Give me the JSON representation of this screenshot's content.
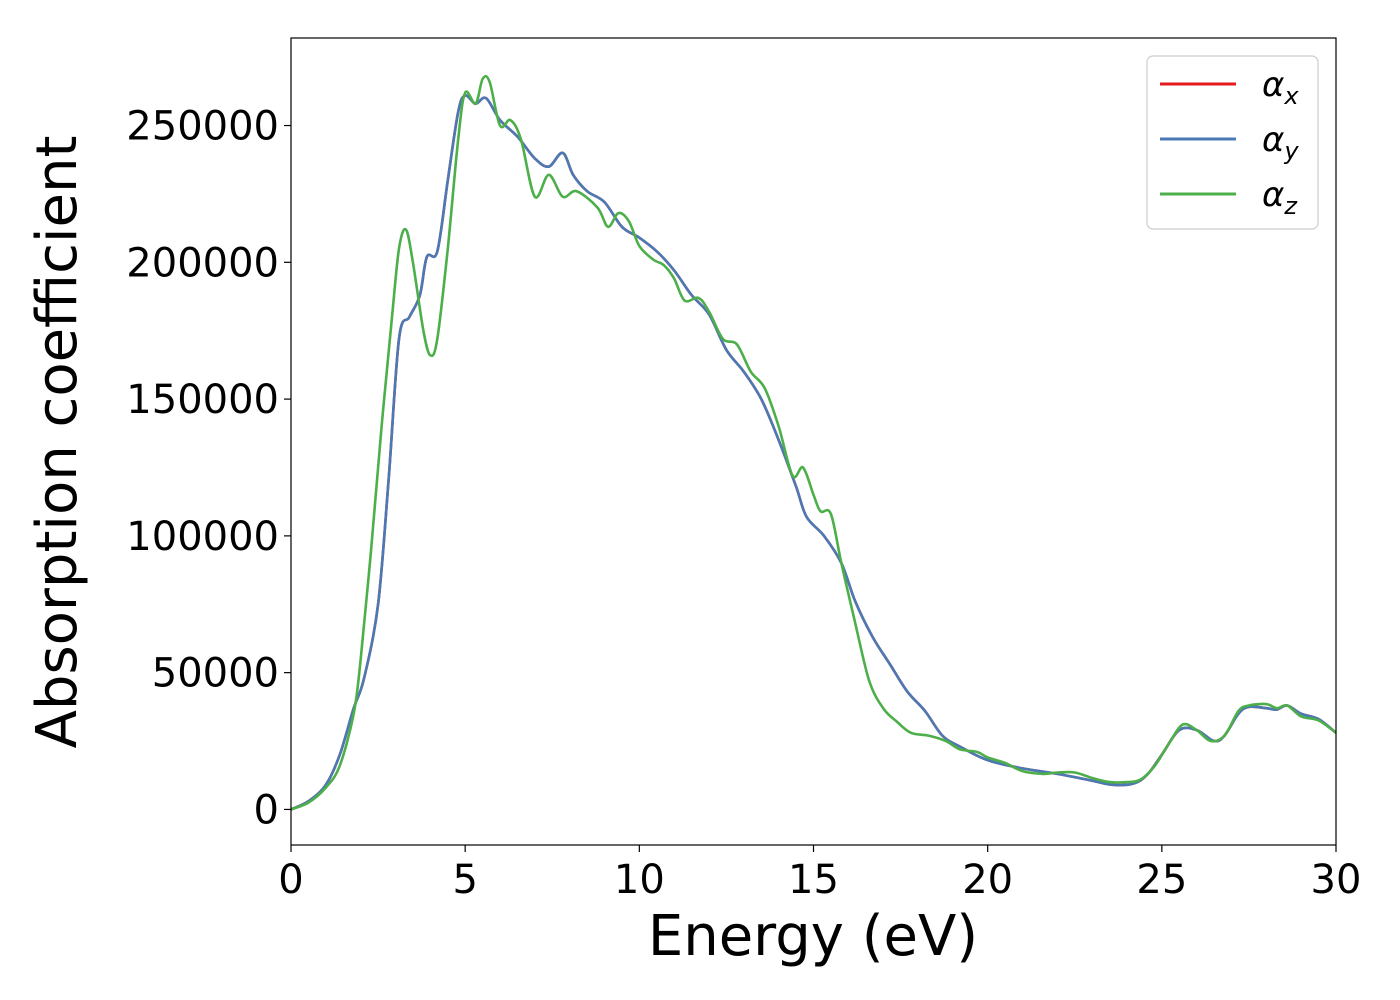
{
  "chart_data": {
    "type": "line",
    "title": "",
    "xlabel": "Energy (eV)",
    "ylabel": "Absorption coefficient",
    "xlim": [
      0,
      30
    ],
    "ylim": [
      -13000,
      282000
    ],
    "xticks": [
      0,
      5,
      10,
      15,
      20,
      25,
      30
    ],
    "xtick_labels": [
      "0",
      "5",
      "10",
      "15",
      "20",
      "25",
      "30"
    ],
    "yticks": [
      0,
      50000,
      100000,
      150000,
      200000,
      250000
    ],
    "ytick_labels": [
      "0",
      "50000",
      "100000",
      "150000",
      "200000",
      "250000"
    ],
    "grid": false,
    "legend_position": "top-right",
    "series": [
      {
        "name": "α",
        "subscript": "x",
        "color": "#e41a1c",
        "points": [
          [
            0,
            0
          ],
          [
            0.5,
            3000
          ],
          [
            1.0,
            9000
          ],
          [
            1.4,
            20000
          ],
          [
            1.8,
            37000
          ],
          [
            2.1,
            48000
          ],
          [
            2.5,
            75000
          ],
          [
            2.8,
            120000
          ],
          [
            3.1,
            172000
          ],
          [
            3.4,
            180000
          ],
          [
            3.7,
            188000
          ],
          [
            3.9,
            202000
          ],
          [
            4.2,
            204000
          ],
          [
            4.5,
            230000
          ],
          [
            4.8,
            255000
          ],
          [
            5.0,
            261000
          ],
          [
            5.3,
            258000
          ],
          [
            5.6,
            260000
          ],
          [
            6.0,
            252000
          ],
          [
            6.5,
            246000
          ],
          [
            7.0,
            238000
          ],
          [
            7.4,
            235000
          ],
          [
            7.8,
            240000
          ],
          [
            8.1,
            232000
          ],
          [
            8.5,
            226000
          ],
          [
            9.0,
            222000
          ],
          [
            9.5,
            213000
          ],
          [
            10.0,
            209000
          ],
          [
            10.5,
            204000
          ],
          [
            11.0,
            197000
          ],
          [
            11.5,
            188000
          ],
          [
            12.0,
            181000
          ],
          [
            12.5,
            168000
          ],
          [
            13.0,
            160000
          ],
          [
            13.5,
            150000
          ],
          [
            14.0,
            135000
          ],
          [
            14.5,
            118000
          ],
          [
            14.8,
            107000
          ],
          [
            15.3,
            100000
          ],
          [
            15.8,
            90000
          ],
          [
            16.2,
            76000
          ],
          [
            16.7,
            63000
          ],
          [
            17.2,
            53000
          ],
          [
            17.7,
            43000
          ],
          [
            18.2,
            36000
          ],
          [
            18.7,
            27000
          ],
          [
            19.2,
            23000
          ],
          [
            20.0,
            18000
          ],
          [
            21.0,
            15000
          ],
          [
            22.0,
            13000
          ],
          [
            23.0,
            10500
          ],
          [
            23.6,
            9000
          ],
          [
            24.2,
            9500
          ],
          [
            24.6,
            13000
          ],
          [
            25.0,
            20000
          ],
          [
            25.5,
            29000
          ],
          [
            26.0,
            29000
          ],
          [
            26.5,
            25000
          ],
          [
            26.8,
            27000
          ],
          [
            27.2,
            35000
          ],
          [
            27.5,
            37500
          ],
          [
            28.0,
            37000
          ],
          [
            28.3,
            36500
          ],
          [
            28.6,
            38000
          ],
          [
            29.0,
            35000
          ],
          [
            29.5,
            33000
          ],
          [
            30.0,
            28000
          ]
        ]
      },
      {
        "name": "α",
        "subscript": "y",
        "color": "#4a7ab5",
        "points": [
          [
            0,
            0
          ],
          [
            0.5,
            3000
          ],
          [
            1.0,
            9000
          ],
          [
            1.4,
            20000
          ],
          [
            1.8,
            37000
          ],
          [
            2.1,
            48000
          ],
          [
            2.5,
            75000
          ],
          [
            2.8,
            120000
          ],
          [
            3.1,
            172000
          ],
          [
            3.4,
            180000
          ],
          [
            3.7,
            188000
          ],
          [
            3.9,
            202000
          ],
          [
            4.2,
            204000
          ],
          [
            4.5,
            230000
          ],
          [
            4.8,
            255000
          ],
          [
            5.0,
            261000
          ],
          [
            5.3,
            258000
          ],
          [
            5.6,
            260000
          ],
          [
            6.0,
            252000
          ],
          [
            6.5,
            246000
          ],
          [
            7.0,
            238000
          ],
          [
            7.4,
            235000
          ],
          [
            7.8,
            240000
          ],
          [
            8.1,
            232000
          ],
          [
            8.5,
            226000
          ],
          [
            9.0,
            222000
          ],
          [
            9.5,
            213000
          ],
          [
            10.0,
            209000
          ],
          [
            10.5,
            204000
          ],
          [
            11.0,
            197000
          ],
          [
            11.5,
            188000
          ],
          [
            12.0,
            181000
          ],
          [
            12.5,
            168000
          ],
          [
            13.0,
            160000
          ],
          [
            13.5,
            150000
          ],
          [
            14.0,
            135000
          ],
          [
            14.5,
            118000
          ],
          [
            14.8,
            107000
          ],
          [
            15.3,
            100000
          ],
          [
            15.8,
            90000
          ],
          [
            16.2,
            76000
          ],
          [
            16.7,
            63000
          ],
          [
            17.2,
            53000
          ],
          [
            17.7,
            43000
          ],
          [
            18.2,
            36000
          ],
          [
            18.7,
            27000
          ],
          [
            19.2,
            23000
          ],
          [
            20.0,
            18000
          ],
          [
            21.0,
            15000
          ],
          [
            22.0,
            13000
          ],
          [
            23.0,
            10500
          ],
          [
            23.6,
            9000
          ],
          [
            24.2,
            9500
          ],
          [
            24.6,
            13000
          ],
          [
            25.0,
            20000
          ],
          [
            25.5,
            29000
          ],
          [
            26.0,
            29000
          ],
          [
            26.5,
            25000
          ],
          [
            26.8,
            27000
          ],
          [
            27.2,
            35000
          ],
          [
            27.5,
            37500
          ],
          [
            28.0,
            37000
          ],
          [
            28.3,
            36500
          ],
          [
            28.6,
            38000
          ],
          [
            29.0,
            35000
          ],
          [
            29.5,
            33000
          ],
          [
            30.0,
            28000
          ]
        ]
      },
      {
        "name": "α",
        "subscript": "z",
        "color": "#4daf4a",
        "points": [
          [
            0,
            0
          ],
          [
            0.5,
            2500
          ],
          [
            1.0,
            8000
          ],
          [
            1.4,
            16000
          ],
          [
            1.8,
            35000
          ],
          [
            2.0,
            55000
          ],
          [
            2.3,
            95000
          ],
          [
            2.6,
            140000
          ],
          [
            2.9,
            180000
          ],
          [
            3.1,
            205000
          ],
          [
            3.3,
            212000
          ],
          [
            3.5,
            200000
          ],
          [
            3.8,
            175000
          ],
          [
            4.0,
            166000
          ],
          [
            4.2,
            172000
          ],
          [
            4.5,
            205000
          ],
          [
            4.8,
            245000
          ],
          [
            5.0,
            262000
          ],
          [
            5.3,
            258000
          ],
          [
            5.5,
            267000
          ],
          [
            5.7,
            266000
          ],
          [
            6.0,
            250000
          ],
          [
            6.3,
            252000
          ],
          [
            6.6,
            245000
          ],
          [
            7.0,
            224000
          ],
          [
            7.4,
            232000
          ],
          [
            7.8,
            224000
          ],
          [
            8.2,
            226000
          ],
          [
            8.8,
            220000
          ],
          [
            9.1,
            213000
          ],
          [
            9.4,
            218000
          ],
          [
            9.7,
            215000
          ],
          [
            10.0,
            206000
          ],
          [
            10.4,
            201000
          ],
          [
            10.7,
            199000
          ],
          [
            11.0,
            194000
          ],
          [
            11.3,
            186000
          ],
          [
            11.7,
            187000
          ],
          [
            12.0,
            182000
          ],
          [
            12.4,
            172000
          ],
          [
            12.8,
            170000
          ],
          [
            13.2,
            160000
          ],
          [
            13.6,
            154000
          ],
          [
            14.0,
            140000
          ],
          [
            14.4,
            122000
          ],
          [
            14.7,
            125000
          ],
          [
            15.0,
            115000
          ],
          [
            15.2,
            109000
          ],
          [
            15.5,
            108000
          ],
          [
            15.8,
            90000
          ],
          [
            16.2,
            68000
          ],
          [
            16.6,
            47000
          ],
          [
            17.0,
            37000
          ],
          [
            17.4,
            32000
          ],
          [
            17.8,
            28000
          ],
          [
            18.3,
            27000
          ],
          [
            18.8,
            25000
          ],
          [
            19.2,
            22000
          ],
          [
            19.7,
            21000
          ],
          [
            20.0,
            19000
          ],
          [
            20.5,
            17000
          ],
          [
            21.0,
            14000
          ],
          [
            21.6,
            13000
          ],
          [
            22.0,
            13500
          ],
          [
            22.5,
            13500
          ],
          [
            23.0,
            11500
          ],
          [
            23.5,
            10000
          ],
          [
            24.0,
            10000
          ],
          [
            24.4,
            11000
          ],
          [
            24.8,
            16000
          ],
          [
            25.2,
            24000
          ],
          [
            25.6,
            31000
          ],
          [
            26.0,
            29000
          ],
          [
            26.4,
            25000
          ],
          [
            26.8,
            27000
          ],
          [
            27.2,
            36000
          ],
          [
            27.5,
            38000
          ],
          [
            28.0,
            38500
          ],
          [
            28.3,
            37000
          ],
          [
            28.6,
            38000
          ],
          [
            29.0,
            34000
          ],
          [
            29.5,
            32500
          ],
          [
            30.0,
            28000
          ]
        ]
      }
    ]
  }
}
